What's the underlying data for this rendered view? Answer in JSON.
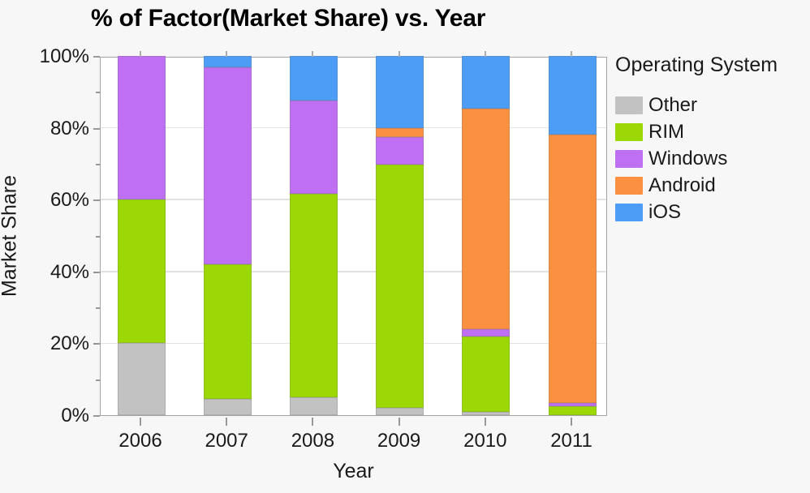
{
  "title": "% of Factor(Market Share) vs. Year",
  "axes": {
    "x_label": "Year",
    "y_label": "Market Share",
    "y_tick_labels": [
      "0%",
      "20%",
      "40%",
      "60%",
      "80%",
      "100%"
    ]
  },
  "legend": {
    "title": "Operating System",
    "items": [
      "Other",
      "RIM",
      "Windows",
      "Android",
      "iOS"
    ]
  },
  "colors": {
    "Other": "#c2c2c2",
    "RIM": "#9cd805",
    "Windows": "#be6ff2",
    "Android": "#fa9040",
    "iOS": "#4d9cf5",
    "axis_frame": "#a3a3a3",
    "gridline": "#e2e2e2"
  },
  "chart_data": {
    "type": "bar",
    "stacked": true,
    "title": "% of Factor(Market Share) vs. Year",
    "xlabel": "Year",
    "ylabel": "Market Share",
    "ylim": [
      0,
      100
    ],
    "y_unit": "%",
    "y_major_tick_step": 20,
    "y_minor_tick_step": 10,
    "grid": "horizontal-major",
    "legend_position": "right",
    "legend_title": "Operating System",
    "categories": [
      "2006",
      "2007",
      "2008",
      "2009",
      "2010",
      "2011"
    ],
    "series": [
      {
        "name": "Other",
        "color": "#c2c2c2",
        "values": [
          20,
          4.5,
          5,
          2,
          1,
          0
        ]
      },
      {
        "name": "RIM",
        "color": "#9cd805",
        "values": [
          40,
          37.6,
          56.6,
          67.8,
          21,
          2.5
        ]
      },
      {
        "name": "Windows",
        "color": "#be6ff2",
        "values": [
          40,
          54.7,
          25.9,
          7.7,
          2,
          1
        ]
      },
      {
        "name": "Android",
        "color": "#fa9040",
        "values": [
          0,
          0,
          0,
          2.5,
          61.3,
          74.5
        ]
      },
      {
        "name": "iOS",
        "color": "#4d9cf5",
        "values": [
          0,
          3.2,
          12.5,
          20,
          14.7,
          22
        ]
      }
    ]
  }
}
